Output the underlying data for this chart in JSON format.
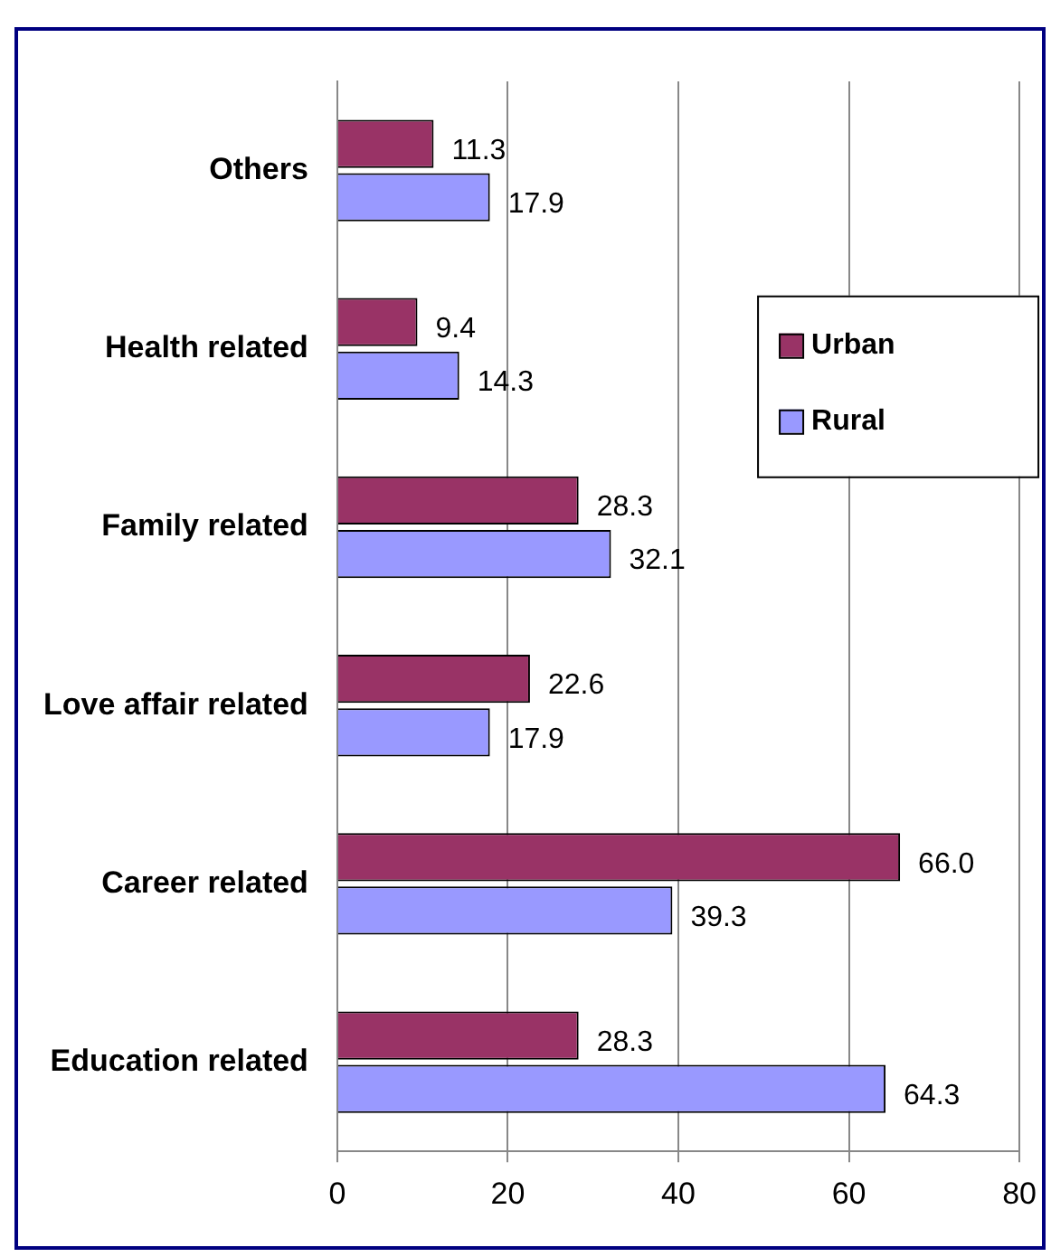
{
  "chart_data": {
    "type": "bar",
    "orientation": "horizontal",
    "categories": [
      "Others",
      "Health related",
      "Family related",
      "Love affair related",
      "Career related",
      "Education related"
    ],
    "series": [
      {
        "name": "Urban",
        "color": "#993366",
        "values": [
          11.3,
          9.4,
          28.3,
          22.6,
          66.0,
          28.3
        ],
        "value_labels": [
          "11.3",
          "9.4",
          "28.3",
          "22.6",
          "66.0",
          "28.3"
        ]
      },
      {
        "name": "Rural",
        "color": "#9999ff",
        "values": [
          17.9,
          14.3,
          32.1,
          17.9,
          39.3,
          64.3
        ],
        "value_labels": [
          "17.9",
          "14.3",
          "32.1",
          "17.9",
          "39.3",
          "64.3"
        ]
      }
    ],
    "xlim": [
      0,
      80
    ],
    "xticks": [
      0,
      20,
      40,
      60,
      80
    ],
    "grid": "x",
    "legend": "right"
  }
}
